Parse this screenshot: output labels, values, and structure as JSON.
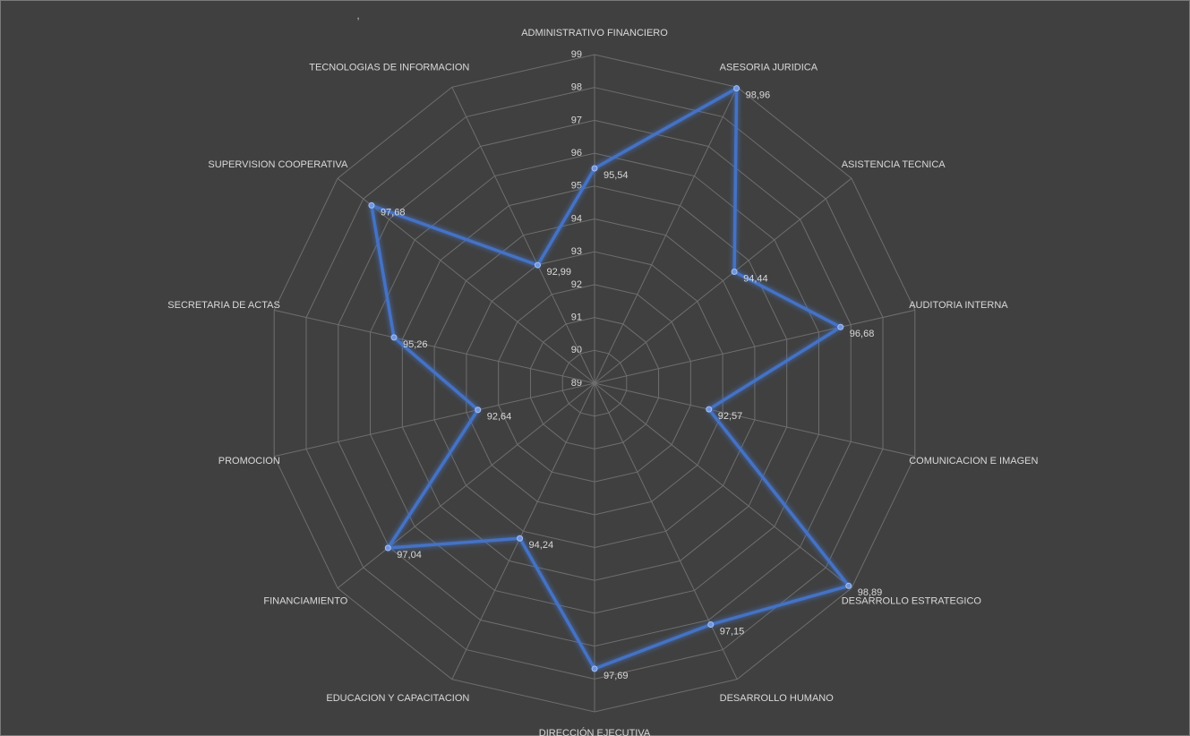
{
  "chart_data": {
    "type": "radar",
    "title": ",",
    "categories": [
      "ADMINISTRATIVO FINANCIERO",
      "ASESORIA JURIDICA",
      "ASISTENCIA TECNICA",
      "AUDITORIA INTERNA",
      "COMUNICACION E IMAGEN",
      "DESARROLLO ESTRATEGICO",
      "DESARROLLO HUMANO",
      "DIRECCIÓN EJECUTIVA",
      "EDUCACION Y CAPACITACION",
      "FINANCIAMIENTO",
      "PROMOCION",
      "SECRETARIA DE ACTAS",
      "SUPERVISION COOPERATIVA",
      "TECNOLOGIAS DE INFORMACION"
    ],
    "values": [
      95.54,
      98.96,
      94.44,
      96.68,
      92.57,
      98.89,
      97.15,
      97.69,
      94.24,
      97.04,
      92.64,
      95.26,
      97.68,
      92.99
    ],
    "value_labels": [
      "95,54",
      "98,96",
      "94,44",
      "96,68",
      "92,57",
      "98,89",
      "97,15",
      "97,69",
      "94,24",
      "97,04",
      "92,64",
      "95,26",
      "97,68",
      "92,99"
    ],
    "color": "#4472c4",
    "ylim": [
      89,
      99
    ],
    "yticks": [
      89,
      90,
      91,
      92,
      93,
      94,
      95,
      96,
      97,
      98,
      99
    ],
    "grid": true
  }
}
